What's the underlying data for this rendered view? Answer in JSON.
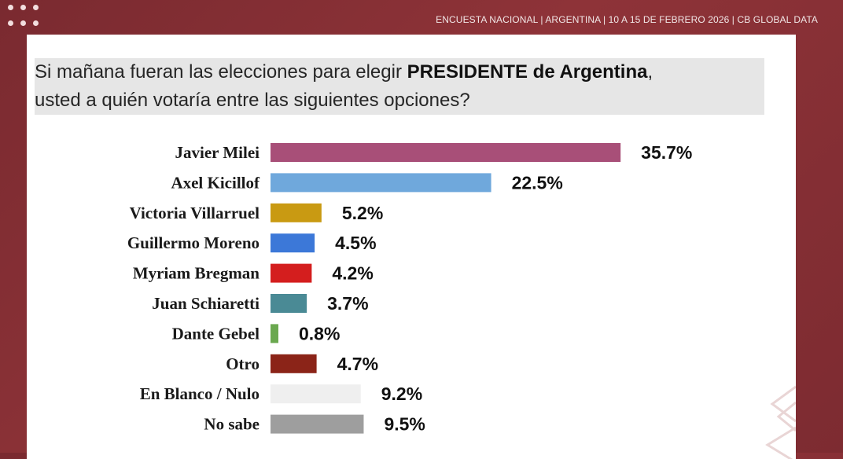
{
  "header": {
    "text": "ENCUESTA NACIONAL  |  ARGENTINA  | 10 A 15 DE FEBRERO 2026 | CB GLOBAL DATA"
  },
  "question": {
    "line1_before": "Si mañana fueran las elecciones para elegir ",
    "line1_bold": "PRESIDENTE de Argentina",
    "line1_after": ",",
    "line2": "usted a quién votaría entre las siguientes opciones?"
  },
  "chart_data": {
    "type": "bar",
    "orientation": "horizontal",
    "categories": [
      "Javier Milei",
      "Axel Kicillof",
      "Victoria Villarruel",
      "Guillermo Moreno",
      "Myriam Bregman",
      "Juan Schiaretti",
      "Dante Gebel",
      "Otro",
      "En Blanco / Nulo",
      "No sabe"
    ],
    "values": [
      35.7,
      22.5,
      5.2,
      4.5,
      4.2,
      3.7,
      0.8,
      4.7,
      9.2,
      9.5
    ],
    "labels": [
      "35.7%",
      "22.5%",
      "5.2%",
      "4.5%",
      "4.2%",
      "3.7%",
      "0.8%",
      "4.7%",
      "9.2%",
      "9.5%"
    ],
    "colors": [
      "#a84f78",
      "#6fa8dc",
      "#c99a12",
      "#3c78d8",
      "#d41e1e",
      "#4a8a95",
      "#6aa84f",
      "#8b2418",
      "#efefef",
      "#9e9e9e"
    ],
    "title": "",
    "xlabel": "",
    "ylabel": "",
    "xlim": [
      0,
      40
    ]
  }
}
